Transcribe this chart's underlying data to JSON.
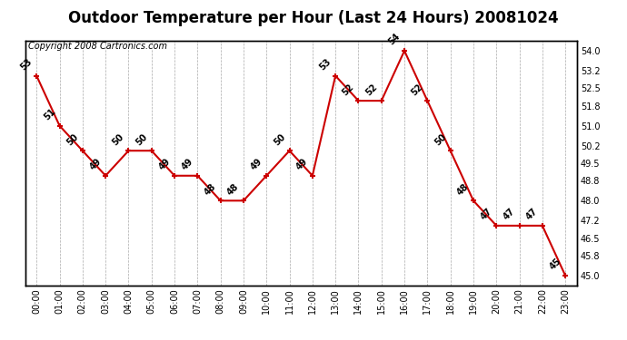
{
  "title": "Outdoor Temperature per Hour (Last 24 Hours) 20081024",
  "copyright": "Copyright 2008 Cartronics.com",
  "hours": [
    "00:00",
    "01:00",
    "02:00",
    "03:00",
    "04:00",
    "05:00",
    "06:00",
    "07:00",
    "08:00",
    "09:00",
    "10:00",
    "11:00",
    "12:00",
    "13:00",
    "14:00",
    "15:00",
    "16:00",
    "17:00",
    "18:00",
    "19:00",
    "20:00",
    "21:00",
    "22:00",
    "23:00"
  ],
  "temps": [
    53,
    51,
    50,
    49,
    50,
    50,
    49,
    49,
    48,
    48,
    49,
    50,
    49,
    53,
    52,
    52,
    54,
    52,
    50,
    48,
    47,
    47,
    47,
    45
  ],
  "line_color": "#cc0000",
  "marker_color": "#cc0000",
  "bg_color": "#ffffff",
  "grid_color": "#aaaaaa",
  "yticks_right": [
    45.0,
    45.8,
    46.5,
    47.2,
    48.0,
    48.8,
    49.5,
    50.2,
    51.0,
    51.8,
    52.5,
    53.2,
    54.0
  ],
  "ymin": 44.6,
  "ymax": 54.4,
  "title_fontsize": 12,
  "copyright_fontsize": 7,
  "label_fontsize": 7,
  "tick_fontsize": 7
}
